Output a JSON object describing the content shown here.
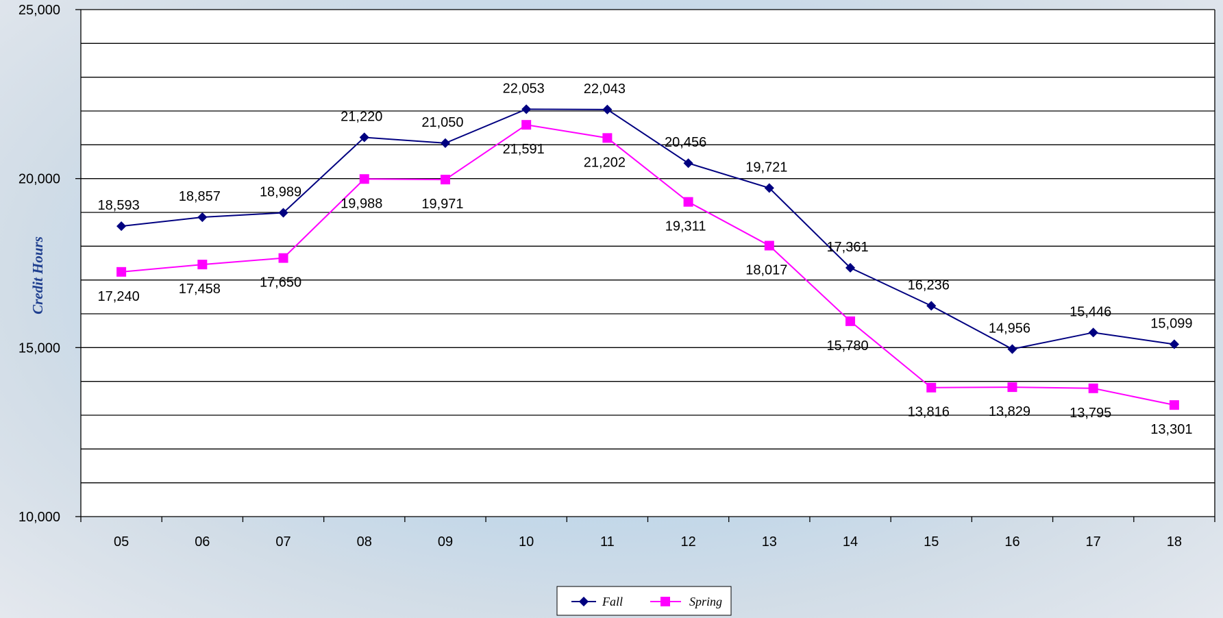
{
  "chart_data": {
    "type": "line",
    "categories": [
      "05",
      "06",
      "07",
      "08",
      "09",
      "10",
      "11",
      "12",
      "13",
      "14",
      "15",
      "16",
      "17",
      "18"
    ],
    "series": [
      {
        "name": "Fall",
        "color": "#000080",
        "marker": "diamond",
        "values": [
          18593,
          18857,
          18989,
          21220,
          21050,
          22053,
          22043,
          20456,
          19721,
          17361,
          16236,
          14956,
          15446,
          15099
        ],
        "labels": [
          "18,593",
          "18,857",
          "18,989",
          "21,220",
          "21,050",
          "22,053",
          "22,043",
          "20,456",
          "19,721",
          "17,361",
          "16,236",
          "14,956",
          "15,446",
          "15,099"
        ]
      },
      {
        "name": "Spring",
        "color": "#ff00ff",
        "marker": "square",
        "values": [
          17240,
          17458,
          17650,
          19988,
          19971,
          21591,
          21202,
          19311,
          18017,
          15780,
          13816,
          13829,
          13795,
          13301
        ],
        "labels": [
          "17,240",
          "17,458",
          "17,650",
          "19,988",
          "19,971",
          "21,591",
          "21,202",
          "19,311",
          "18,017",
          "15,780",
          "13,816",
          "13,829",
          "13,795",
          "13,301"
        ]
      }
    ],
    "xlabel": "",
    "ylabel": "Credit Hours",
    "ylim": [
      10000,
      25000
    ],
    "yticks": [
      10000,
      15000,
      20000,
      25000
    ],
    "ytick_labels": [
      "10,000",
      "15,000",
      "20,000",
      "25,000"
    ],
    "grid": true,
    "legend": "bottom-center"
  }
}
